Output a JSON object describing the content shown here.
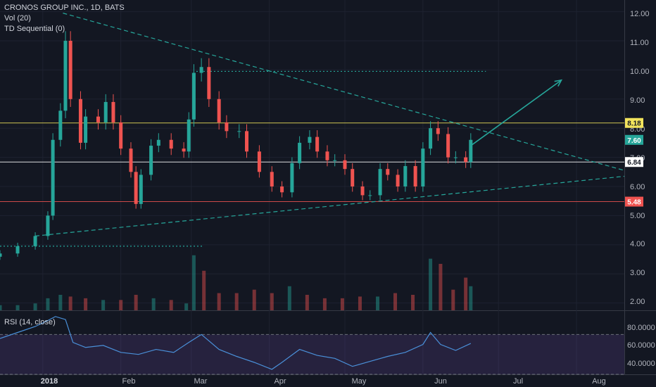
{
  "header": {
    "symbol_line": "CRONOS GROUP INC., 1D, BATS",
    "study_vol": "Vol (20)",
    "study_td": "TD Sequential (0)",
    "study_rsi": "RSI (14, close)"
  },
  "price_axis": {
    "ticks": [
      "12.00",
      "11.00",
      "10.00",
      "9.00",
      "8.00",
      "7.00",
      "6.00",
      "5.00",
      "4.00",
      "3.00",
      "2.00"
    ],
    "tick_values": [
      12,
      11,
      10,
      9,
      8,
      7,
      6,
      5,
      4,
      3,
      2
    ],
    "badges": [
      {
        "label": "8.18",
        "value": 8.18,
        "color": "#f2e35c",
        "text_color": "#131722"
      },
      {
        "label": "7.60",
        "value": 7.6,
        "color": "#26a69a",
        "text_color": "#ffffff"
      },
      {
        "label": "6.84",
        "value": 6.84,
        "color": "#ffffff",
        "text_color": "#131722"
      },
      {
        "label": "5.48",
        "value": 5.48,
        "color": "#ef5350",
        "text_color": "#ffffff"
      }
    ]
  },
  "rsi_axis": {
    "ticks": [
      "80.0000",
      "60.0000",
      "40.0000"
    ],
    "tick_values": [
      80,
      60,
      40
    ]
  },
  "time_axis": {
    "labels": [
      "2018",
      "Feb",
      "Mar",
      "Apr",
      "May",
      "Jun",
      "Jul",
      "Aug"
    ],
    "months": [
      "2018-01",
      "2018-02",
      "2018-03",
      "2018-04",
      "2018-05",
      "2018-06",
      "2018-07",
      "2018-08"
    ]
  },
  "colors": {
    "background": "#131722",
    "up": "#26a69a",
    "down": "#ef5350",
    "trendline": "#26a69a",
    "resistance": "#f2e35c",
    "support": "#ef5350",
    "rsi_line": "#4a90d9",
    "rsi_band": "#7e57c2"
  },
  "chart_data": {
    "type": "candlestick",
    "title": "CRONOS GROUP INC., 1D, BATS",
    "x_range": [
      "2017-12-15",
      "2018-08-20"
    ],
    "y_range": [
      1.75,
      12.4
    ],
    "closes": [
      {
        "date": "2017-12-15",
        "close": 3.7
      },
      {
        "date": "2017-12-22",
        "close": 3.95
      },
      {
        "date": "2017-12-29",
        "close": 4.3
      },
      {
        "date": "2018-01-03",
        "close": 5.0
      },
      {
        "date": "2018-01-05",
        "close": 7.6
      },
      {
        "date": "2018-01-08",
        "close": 8.6
      },
      {
        "date": "2018-01-10",
        "close": 11.0
      },
      {
        "date": "2018-01-12",
        "close": 9.0
      },
      {
        "date": "2018-01-16",
        "close": 7.5
      },
      {
        "date": "2018-01-18",
        "close": 8.4
      },
      {
        "date": "2018-01-23",
        "close": 8.2
      },
      {
        "date": "2018-01-26",
        "close": 8.9
      },
      {
        "date": "2018-01-29",
        "close": 8.2
      },
      {
        "date": "2018-02-01",
        "close": 7.3
      },
      {
        "date": "2018-02-05",
        "close": 6.5
      },
      {
        "date": "2018-02-07",
        "close": 5.4
      },
      {
        "date": "2018-02-09",
        "close": 6.4
      },
      {
        "date": "2018-02-13",
        "close": 7.4
      },
      {
        "date": "2018-02-16",
        "close": 7.6
      },
      {
        "date": "2018-02-21",
        "close": 7.3
      },
      {
        "date": "2018-02-26",
        "close": 7.2
      },
      {
        "date": "2018-02-28",
        "close": 8.3
      },
      {
        "date": "2018-03-02",
        "close": 9.9
      },
      {
        "date": "2018-03-05",
        "close": 10.1
      },
      {
        "date": "2018-03-08",
        "close": 9.0
      },
      {
        "date": "2018-03-12",
        "close": 8.2
      },
      {
        "date": "2018-03-15",
        "close": 7.9
      },
      {
        "date": "2018-03-20",
        "close": 7.9
      },
      {
        "date": "2018-03-23",
        "close": 7.2
      },
      {
        "date": "2018-03-28",
        "close": 6.5
      },
      {
        "date": "2018-04-02",
        "close": 6.0
      },
      {
        "date": "2018-04-06",
        "close": 5.8
      },
      {
        "date": "2018-04-10",
        "close": 6.8
      },
      {
        "date": "2018-04-13",
        "close": 7.5
      },
      {
        "date": "2018-04-17",
        "close": 7.7
      },
      {
        "date": "2018-04-20",
        "close": 7.2
      },
      {
        "date": "2018-04-24",
        "close": 6.9
      },
      {
        "date": "2018-04-27",
        "close": 6.9
      },
      {
        "date": "2018-05-01",
        "close": 6.6
      },
      {
        "date": "2018-05-04",
        "close": 6.0
      },
      {
        "date": "2018-05-08",
        "close": 5.7
      },
      {
        "date": "2018-05-11",
        "close": 5.7
      },
      {
        "date": "2018-05-15",
        "close": 6.6
      },
      {
        "date": "2018-05-18",
        "close": 6.4
      },
      {
        "date": "2018-05-22",
        "close": 6.0
      },
      {
        "date": "2018-05-25",
        "close": 6.7
      },
      {
        "date": "2018-05-29",
        "close": 6.0
      },
      {
        "date": "2018-06-01",
        "close": 7.3
      },
      {
        "date": "2018-06-04",
        "close": 8.0
      },
      {
        "date": "2018-06-07",
        "close": 7.8
      },
      {
        "date": "2018-06-11",
        "close": 7.0
      },
      {
        "date": "2018-06-14",
        "close": 7.0
      },
      {
        "date": "2018-06-18",
        "close": 6.84
      },
      {
        "date": "2018-06-20",
        "close": 7.6
      }
    ],
    "horizontal_levels": [
      {
        "label": "8.18",
        "value": 8.18,
        "color": "#f2e35c"
      },
      {
        "label": "6.84",
        "value": 6.84,
        "color": "#ffffff"
      },
      {
        "label": "5.48",
        "value": 5.48,
        "color": "#ef5350"
      }
    ],
    "trendlines": [
      {
        "style": "dashed",
        "from": {
          "date": "2018-01-09",
          "price": 11.95
        },
        "to": {
          "date": "2018-08-20",
          "price": 6.55
        }
      },
      {
        "style": "dashed",
        "from": {
          "date": "2017-12-29",
          "price": 4.3
        },
        "to": {
          "date": "2018-08-20",
          "price": 6.35
        }
      },
      {
        "style": "dotted",
        "from": {
          "date": "2018-03-03",
          "price": 9.95
        },
        "to": {
          "date": "2018-06-26",
          "price": 9.95
        }
      },
      {
        "style": "dotted",
        "from": {
          "date": "2017-12-15",
          "price": 3.95
        },
        "to": {
          "date": "2018-03-06",
          "price": 3.95
        }
      }
    ],
    "projection_arrow": {
      "from": {
        "date": "2018-06-20",
        "price": 7.4
      },
      "to": {
        "date": "2018-07-26",
        "price": 9.65
      }
    },
    "volume": {
      "y_range": [
        0,
        4.5
      ],
      "dates": [
        "2017-12-15",
        "2017-12-22",
        "2017-12-29",
        "2018-01-03",
        "2018-01-08",
        "2018-01-12",
        "2018-01-18",
        "2018-01-25",
        "2018-02-01",
        "2018-02-07",
        "2018-02-14",
        "2018-02-21",
        "2018-02-27",
        "2018-03-02",
        "2018-03-06",
        "2018-03-12",
        "2018-03-19",
        "2018-03-26",
        "2018-04-02",
        "2018-04-09",
        "2018-04-16",
        "2018-04-23",
        "2018-04-30",
        "2018-05-07",
        "2018-05-14",
        "2018-05-21",
        "2018-05-28",
        "2018-06-04",
        "2018-06-08",
        "2018-06-13",
        "2018-06-18",
        "2018-06-20"
      ],
      "values": [
        0.3,
        0.3,
        0.4,
        0.7,
        0.9,
        0.8,
        0.7,
        0.6,
        0.6,
        0.9,
        0.7,
        0.6,
        0.4,
        3.2,
        2.3,
        1.0,
        1.0,
        1.2,
        1.0,
        1.4,
        0.9,
        0.7,
        0.7,
        0.8,
        0.8,
        1.0,
        0.9,
        3.0,
        2.7,
        1.2,
        1.9,
        1.4
      ],
      "directions": [
        "up",
        "up",
        "up",
        "up",
        "up",
        "down",
        "down",
        "up",
        "down",
        "down",
        "up",
        "down",
        "up",
        "up",
        "down",
        "down",
        "down",
        "down",
        "down",
        "up",
        "down",
        "down",
        "down",
        "down",
        "up",
        "down",
        "down",
        "up",
        "down",
        "down",
        "down",
        "up"
      ]
    },
    "rsi": {
      "y_range": [
        30,
        90
      ],
      "band": [
        30,
        70
      ],
      "dates": [
        "2017-12-15",
        "2017-12-22",
        "2017-12-29",
        "2018-01-03",
        "2018-01-06",
        "2018-01-10",
        "2018-01-13",
        "2018-01-18",
        "2018-01-25",
        "2018-02-01",
        "2018-02-08",
        "2018-02-15",
        "2018-02-22",
        "2018-02-28",
        "2018-03-05",
        "2018-03-12",
        "2018-03-19",
        "2018-03-26",
        "2018-04-02",
        "2018-04-06",
        "2018-04-13",
        "2018-04-20",
        "2018-04-27",
        "2018-05-04",
        "2018-05-11",
        "2018-05-18",
        "2018-05-25",
        "2018-06-01",
        "2018-06-04",
        "2018-06-08",
        "2018-06-14",
        "2018-06-20"
      ],
      "values": [
        66,
        72,
        78,
        84,
        88,
        85,
        62,
        57,
        59,
        52,
        50,
        55,
        52,
        62,
        70,
        55,
        48,
        42,
        35,
        42,
        55,
        49,
        46,
        38,
        43,
        48,
        52,
        60,
        72,
        60,
        54,
        61
      ]
    }
  }
}
